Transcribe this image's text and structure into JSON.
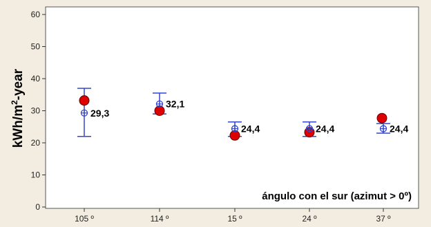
{
  "chart_data": {
    "type": "scatter",
    "ylabel": "kWh/m2-year",
    "ylabel_main": "kWh/m",
    "ylabel_sup": "2",
    "ylabel_tail": "-year",
    "annotation": "ángulo con el sur (azimut > 0º)",
    "categories": [
      "105 º",
      "114 º",
      "15 º",
      "24 º",
      "37 º"
    ],
    "ylim": [
      0,
      60
    ],
    "yticks": [
      "0",
      "10",
      "20",
      "30",
      "40",
      "50",
      "60"
    ],
    "grid": false,
    "series": [
      {
        "marker": "red-dot",
        "color": "#dd0000",
        "values": [
          33.2,
          30.0,
          22.3,
          23.3,
          27.7
        ]
      },
      {
        "marker": "blue-crosshair",
        "color": "#3344cc",
        "values": [
          29.3,
          32.1,
          24.4,
          24.4,
          24.4
        ],
        "upper": [
          37.0,
          35.5,
          26.5,
          26.5,
          26.0
        ],
        "lower": [
          22.0,
          29.0,
          22.0,
          22.0,
          23.0
        ],
        "labels": [
          "29,3",
          "32,1",
          "24,4",
          "24,4",
          "24,4"
        ]
      }
    ]
  }
}
